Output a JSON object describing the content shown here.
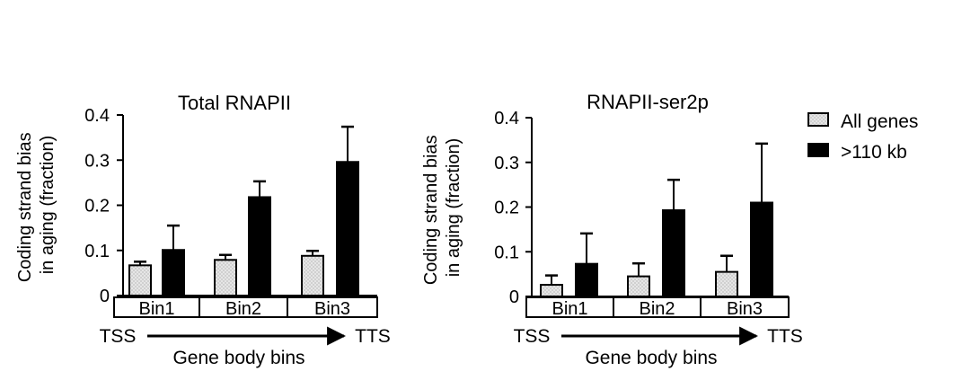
{
  "legend": {
    "all_genes_label": "All genes",
    "long_genes_label": ">110 kb"
  },
  "colors": {
    "all_genes_fill": "#e6e6e6",
    "long_genes_fill": "#000000",
    "axis": "#000000"
  },
  "chart_data": [
    {
      "type": "bar",
      "title": "Total RNAPII",
      "ylabel": "Coding strand bias\nin aging (fraction)",
      "xlabel": "Gene body bins",
      "start_label": "TSS",
      "end_label": "TTS",
      "ylim": [
        0,
        0.4
      ],
      "yticks": [
        0,
        0.1,
        0.2,
        0.3,
        0.4
      ],
      "ytick_labels": [
        "0",
        "0.1",
        "0.2",
        "0.3",
        "0.4"
      ],
      "categories": [
        "Bin1",
        "Bin2",
        "Bin3"
      ],
      "series": [
        {
          "name": "All genes",
          "values": [
            0.067,
            0.079,
            0.088
          ],
          "errors": [
            0.008,
            0.011,
            0.011
          ]
        },
        {
          "name": ">110 kb",
          "values": [
            0.101,
            0.218,
            0.296
          ],
          "errors": [
            0.054,
            0.035,
            0.078
          ]
        }
      ]
    },
    {
      "type": "bar",
      "title": "RNAPII-ser2p",
      "ylabel": "Coding strand bias\nin aging (fraction)",
      "xlabel": "Gene body bins",
      "start_label": "TSS",
      "end_label": "TTS",
      "ylim": [
        0,
        0.4
      ],
      "yticks": [
        0,
        0.1,
        0.2,
        0.3,
        0.4
      ],
      "ytick_labels": [
        "0",
        "0.1",
        "0.2",
        "0.3",
        "0.4"
      ],
      "categories": [
        "Bin1",
        "Bin2",
        "Bin3"
      ],
      "series": [
        {
          "name": "All genes",
          "values": [
            0.026,
            0.045,
            0.055
          ],
          "errors": [
            0.021,
            0.029,
            0.036
          ]
        },
        {
          "name": ">110 kb",
          "values": [
            0.073,
            0.193,
            0.21
          ],
          "errors": [
            0.068,
            0.068,
            0.132
          ]
        }
      ]
    }
  ]
}
